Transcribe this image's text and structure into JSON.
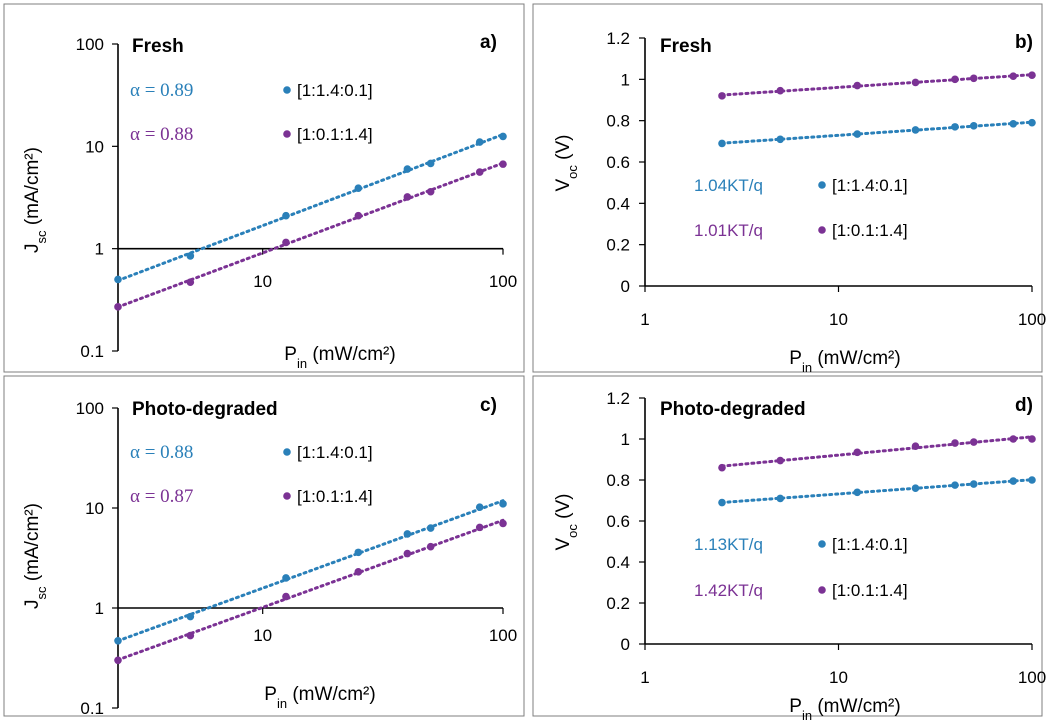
{
  "colors": {
    "blue": "#2a80b9",
    "purple": "#7b3294"
  },
  "chart_data": [
    {
      "panel": "a)",
      "heading": "Fresh",
      "type": "scatter",
      "x_scale": "log",
      "y_scale": "log",
      "xlim": [
        2.5,
        100
      ],
      "ylim": [
        0.1,
        100
      ],
      "x_tick_labels": [
        "10",
        "100"
      ],
      "y_tick_labels": [
        "100",
        "10",
        "1",
        "0.1"
      ],
      "xlabel_main": "P",
      "xlabel_sub": "in",
      "xlabel_rest": " (mW/cm²)",
      "ylabel_main": "J",
      "ylabel_sub": "sc",
      "ylabel_rest": " (mA/cm²)",
      "series": [
        {
          "name": "[1:1.4:0.1]",
          "color": "blue",
          "annotation": "α = 0.89",
          "x": [
            2.5,
            5,
            12.5,
            25,
            40,
            50,
            80,
            100
          ],
          "y": [
            0.5,
            0.85,
            2.1,
            3.9,
            6,
            6.8,
            11,
            12.5
          ]
        },
        {
          "name": "[1:0.1:1.4]",
          "color": "purple",
          "annotation": "α = 0.88",
          "x": [
            2.5,
            5,
            12.5,
            25,
            40,
            50,
            80,
            100
          ],
          "y": [
            0.27,
            0.47,
            1.15,
            2.1,
            3.2,
            3.6,
            5.6,
            6.7
          ]
        }
      ]
    },
    {
      "panel": "b)",
      "heading": "Fresh",
      "type": "scatter",
      "x_scale": "log",
      "y_scale": "linear",
      "xlim": [
        1,
        100
      ],
      "ylim": [
        0,
        1.2
      ],
      "x_tick_labels": [
        "1",
        "10",
        "100"
      ],
      "y_tick_labels": [
        "0",
        "0.2",
        "0.4",
        "0.6",
        "0.8",
        "1",
        "1.2"
      ],
      "xlabel_main": "P",
      "xlabel_sub": "in",
      "xlabel_rest": " (mW/cm²)",
      "ylabel_main": "V",
      "ylabel_sub": "oc",
      "ylabel_rest": " (V)",
      "series": [
        {
          "name": "[1:1.4:0.1]",
          "color": "blue",
          "annotation": "1.04KT/q",
          "x": [
            2.5,
            5,
            12.5,
            25,
            40,
            50,
            80,
            100
          ],
          "y": [
            0.69,
            0.71,
            0.735,
            0.755,
            0.77,
            0.775,
            0.785,
            0.79
          ]
        },
        {
          "name": "[1:0.1:1.4]",
          "color": "purple",
          "annotation": "1.01KT/q",
          "x": [
            2.5,
            5,
            12.5,
            25,
            40,
            50,
            80,
            100
          ],
          "y": [
            0.92,
            0.945,
            0.97,
            0.985,
            1.0,
            1.005,
            1.015,
            1.02
          ]
        }
      ]
    },
    {
      "panel": "c)",
      "heading": "Photo-degraded",
      "type": "scatter",
      "x_scale": "log",
      "y_scale": "log",
      "xlim": [
        2.5,
        100
      ],
      "ylim": [
        0.1,
        100
      ],
      "x_tick_labels": [
        "10",
        "100"
      ],
      "y_tick_labels": [
        "100",
        "10",
        "1",
        "0.1"
      ],
      "xlabel_main": "P",
      "xlabel_sub": "in",
      "xlabel_rest": " (mW/cm²)",
      "ylabel_main": "J",
      "ylabel_sub": "sc",
      "ylabel_rest": " (mA/cm²)",
      "series": [
        {
          "name": "[1:1.4:0.1]",
          "color": "blue",
          "annotation": "α = 0.88",
          "x": [
            2.5,
            5,
            12.5,
            25,
            40,
            50,
            80,
            100
          ],
          "y": [
            0.47,
            0.82,
            2.0,
            3.6,
            5.5,
            6.3,
            10.2,
            11
          ]
        },
        {
          "name": "[1:0.1:1.4]",
          "color": "purple",
          "annotation": "α = 0.87",
          "x": [
            2.5,
            5,
            12.5,
            25,
            40,
            50,
            80,
            100
          ],
          "y": [
            0.3,
            0.53,
            1.3,
            2.3,
            3.5,
            4.1,
            6.4,
            7
          ]
        }
      ]
    },
    {
      "panel": "d)",
      "heading": "Photo-degraded",
      "type": "scatter",
      "x_scale": "log",
      "y_scale": "linear",
      "xlim": [
        1,
        100
      ],
      "ylim": [
        0,
        1.2
      ],
      "x_tick_labels": [
        "1",
        "10",
        "100"
      ],
      "y_tick_labels": [
        "0",
        "0.2",
        "0.4",
        "0.6",
        "0.8",
        "1",
        "1.2"
      ],
      "xlabel_main": "P",
      "xlabel_sub": "in",
      "xlabel_rest": " (mW/cm²)",
      "ylabel_main": "V",
      "ylabel_sub": "oc",
      "ylabel_rest": " (V)",
      "series": [
        {
          "name": "[1:1.4:0.1]",
          "color": "blue",
          "annotation": "1.13KT/q",
          "x": [
            2.5,
            5,
            12.5,
            25,
            40,
            50,
            80,
            100
          ],
          "y": [
            0.69,
            0.71,
            0.74,
            0.76,
            0.775,
            0.78,
            0.795,
            0.8
          ]
        },
        {
          "name": "[1:0.1:1.4]",
          "color": "purple",
          "annotation": "1.42KT/q",
          "x": [
            2.5,
            5,
            12.5,
            25,
            40,
            50,
            80,
            100
          ],
          "y": [
            0.86,
            0.895,
            0.935,
            0.965,
            0.98,
            0.985,
            1.0,
            1.0
          ]
        }
      ]
    }
  ]
}
